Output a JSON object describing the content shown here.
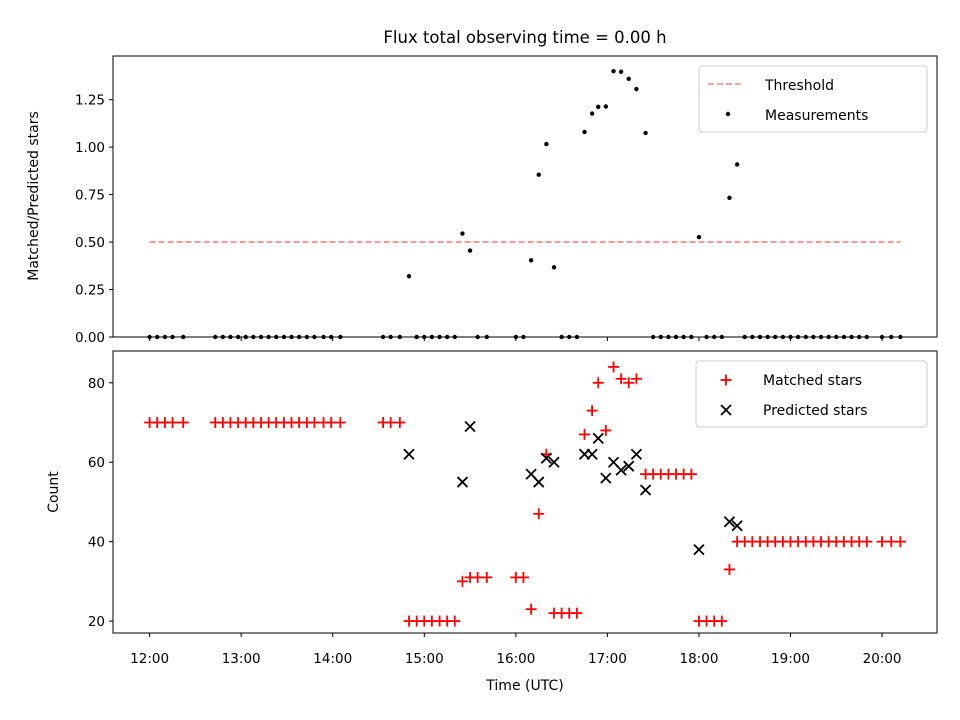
{
  "title": "Flux total observing time = 0.00 h",
  "chart_data": [
    {
      "type": "scatter",
      "name": "ratio-panel",
      "ylabel": "Matched/Predicted stars",
      "ylim": [
        0,
        1.48
      ],
      "xlim": [
        11.6,
        20.6
      ],
      "yticks": [
        0.0,
        0.25,
        0.5,
        0.75,
        1.0,
        1.25
      ],
      "ytick_labels": [
        "0.00",
        "0.25",
        "0.50",
        "0.75",
        "1.00",
        "1.25"
      ],
      "threshold": {
        "label": "Threshold",
        "value": 0.5,
        "x_range": [
          12.0,
          20.2
        ],
        "color": "#ff8080"
      },
      "measurements": {
        "label": "Measurements",
        "color": "#000000",
        "points": [
          [
            12.0,
            0
          ],
          [
            12.083,
            0
          ],
          [
            12.167,
            0
          ],
          [
            12.25,
            0
          ],
          [
            12.367,
            0
          ],
          [
            12.717,
            0
          ],
          [
            12.8,
            0
          ],
          [
            12.883,
            0
          ],
          [
            12.967,
            0
          ],
          [
            13.05,
            0
          ],
          [
            13.133,
            0
          ],
          [
            13.217,
            0
          ],
          [
            13.3,
            0
          ],
          [
            13.383,
            0
          ],
          [
            13.467,
            0
          ],
          [
            13.55,
            0
          ],
          [
            13.633,
            0
          ],
          [
            13.717,
            0
          ],
          [
            13.8,
            0
          ],
          [
            13.9,
            0
          ],
          [
            13.983,
            0
          ],
          [
            14.083,
            0
          ],
          [
            14.55,
            0
          ],
          [
            14.633,
            0
          ],
          [
            14.733,
            0
          ],
          [
            14.833,
            0.32
          ],
          [
            14.917,
            0
          ],
          [
            15.0,
            0
          ],
          [
            15.083,
            0
          ],
          [
            15.167,
            0
          ],
          [
            15.25,
            0
          ],
          [
            15.333,
            0
          ],
          [
            15.417,
            0.545
          ],
          [
            15.5,
            0.455
          ],
          [
            15.583,
            0
          ],
          [
            15.683,
            0
          ],
          [
            16.0,
            0
          ],
          [
            16.083,
            0
          ],
          [
            16.167,
            0.404
          ],
          [
            16.25,
            0.855
          ],
          [
            16.333,
            1.016
          ],
          [
            16.417,
            0.367
          ],
          [
            16.5,
            0
          ],
          [
            16.583,
            0
          ],
          [
            16.667,
            0
          ],
          [
            16.75,
            1.08
          ],
          [
            16.833,
            1.177
          ],
          [
            16.9,
            1.212
          ],
          [
            16.983,
            1.214
          ],
          [
            17.067,
            1.4
          ],
          [
            17.15,
            1.397
          ],
          [
            17.233,
            1.36
          ],
          [
            17.317,
            1.306
          ],
          [
            17.417,
            1.075
          ],
          [
            17.5,
            0
          ],
          [
            17.583,
            0
          ],
          [
            17.667,
            0
          ],
          [
            17.75,
            0
          ],
          [
            17.833,
            0
          ],
          [
            17.917,
            0
          ],
          [
            18.0,
            0.526
          ],
          [
            18.083,
            0
          ],
          [
            18.167,
            0
          ],
          [
            18.25,
            0
          ],
          [
            18.333,
            0.733
          ],
          [
            18.417,
            0.909
          ],
          [
            18.5,
            0
          ],
          [
            18.583,
            0
          ],
          [
            18.667,
            0
          ],
          [
            18.75,
            0
          ],
          [
            18.833,
            0
          ],
          [
            18.917,
            0
          ],
          [
            19.0,
            0
          ],
          [
            19.083,
            0
          ],
          [
            19.167,
            0
          ],
          [
            19.25,
            0
          ],
          [
            19.333,
            0
          ],
          [
            19.417,
            0
          ],
          [
            19.5,
            0
          ],
          [
            19.583,
            0
          ],
          [
            19.667,
            0
          ],
          [
            19.75,
            0
          ],
          [
            19.833,
            0
          ],
          [
            20.0,
            0
          ],
          [
            20.1,
            0
          ],
          [
            20.2,
            0
          ]
        ]
      },
      "legend": {
        "position": "top-right"
      }
    },
    {
      "type": "scatter",
      "name": "count-panel",
      "ylabel": "Count",
      "xlabel": "Time (UTC)",
      "ylim": [
        17,
        88
      ],
      "xlim": [
        11.6,
        20.6
      ],
      "yticks": [
        20,
        40,
        60,
        80
      ],
      "ytick_labels": [
        "20",
        "40",
        "60",
        "80"
      ],
      "xticks": [
        12,
        13,
        14,
        15,
        16,
        17,
        18,
        19,
        20
      ],
      "xtick_labels": [
        "12:00",
        "13:00",
        "14:00",
        "15:00",
        "16:00",
        "17:00",
        "18:00",
        "19:00",
        "20:00"
      ],
      "series": [
        {
          "name": "Matched stars",
          "marker": "plus",
          "color": "#ff0000",
          "points": [
            [
              12.0,
              70
            ],
            [
              12.083,
              70
            ],
            [
              12.167,
              70
            ],
            [
              12.25,
              70
            ],
            [
              12.367,
              70
            ],
            [
              12.717,
              70
            ],
            [
              12.8,
              70
            ],
            [
              12.883,
              70
            ],
            [
              12.967,
              70
            ],
            [
              13.05,
              70
            ],
            [
              13.133,
              70
            ],
            [
              13.217,
              70
            ],
            [
              13.3,
              70
            ],
            [
              13.383,
              70
            ],
            [
              13.467,
              70
            ],
            [
              13.55,
              70
            ],
            [
              13.633,
              70
            ],
            [
              13.717,
              70
            ],
            [
              13.8,
              70
            ],
            [
              13.9,
              70
            ],
            [
              13.983,
              70
            ],
            [
              14.083,
              70
            ],
            [
              14.55,
              70
            ],
            [
              14.633,
              70
            ],
            [
              14.733,
              70
            ],
            [
              14.833,
              20
            ],
            [
              14.917,
              20
            ],
            [
              15.0,
              20
            ],
            [
              15.083,
              20
            ],
            [
              15.167,
              20
            ],
            [
              15.25,
              20
            ],
            [
              15.333,
              20
            ],
            [
              15.417,
              30
            ],
            [
              15.5,
              31
            ],
            [
              15.583,
              31
            ],
            [
              15.683,
              31
            ],
            [
              16.0,
              31
            ],
            [
              16.083,
              31
            ],
            [
              16.167,
              23
            ],
            [
              16.25,
              47
            ],
            [
              16.333,
              62
            ],
            [
              16.417,
              22
            ],
            [
              16.5,
              22
            ],
            [
              16.583,
              22
            ],
            [
              16.667,
              22
            ],
            [
              16.75,
              67
            ],
            [
              16.833,
              73
            ],
            [
              16.9,
              80
            ],
            [
              16.983,
              68
            ],
            [
              17.067,
              84
            ],
            [
              17.15,
              81
            ],
            [
              17.233,
              80
            ],
            [
              17.317,
              81
            ],
            [
              17.417,
              57
            ],
            [
              17.5,
              57
            ],
            [
              17.583,
              57
            ],
            [
              17.667,
              57
            ],
            [
              17.75,
              57
            ],
            [
              17.833,
              57
            ],
            [
              17.917,
              57
            ],
            [
              18.0,
              20
            ],
            [
              18.083,
              20
            ],
            [
              18.167,
              20
            ],
            [
              18.25,
              20
            ],
            [
              18.333,
              33
            ],
            [
              18.417,
              40
            ],
            [
              18.5,
              40
            ],
            [
              18.583,
              40
            ],
            [
              18.667,
              40
            ],
            [
              18.75,
              40
            ],
            [
              18.833,
              40
            ],
            [
              18.917,
              40
            ],
            [
              19.0,
              40
            ],
            [
              19.083,
              40
            ],
            [
              19.167,
              40
            ],
            [
              19.25,
              40
            ],
            [
              19.333,
              40
            ],
            [
              19.417,
              40
            ],
            [
              19.5,
              40
            ],
            [
              19.583,
              40
            ],
            [
              19.667,
              40
            ],
            [
              19.75,
              40
            ],
            [
              19.833,
              40
            ],
            [
              20.0,
              40
            ],
            [
              20.1,
              40
            ],
            [
              20.2,
              40
            ]
          ]
        },
        {
          "name": "Predicted stars",
          "marker": "x",
          "color": "#000000",
          "points": [
            [
              14.833,
              62
            ],
            [
              15.417,
              55
            ],
            [
              15.5,
              69
            ],
            [
              16.167,
              57
            ],
            [
              16.25,
              55
            ],
            [
              16.333,
              61
            ],
            [
              16.417,
              60
            ],
            [
              16.75,
              62
            ],
            [
              16.833,
              62
            ],
            [
              16.9,
              66
            ],
            [
              16.983,
              56
            ],
            [
              17.067,
              60
            ],
            [
              17.15,
              58
            ],
            [
              17.233,
              59
            ],
            [
              17.317,
              62
            ],
            [
              17.417,
              53
            ],
            [
              18.0,
              38
            ],
            [
              18.333,
              45
            ],
            [
              18.417,
              44
            ]
          ]
        }
      ],
      "legend": {
        "position": "top-right"
      }
    }
  ]
}
